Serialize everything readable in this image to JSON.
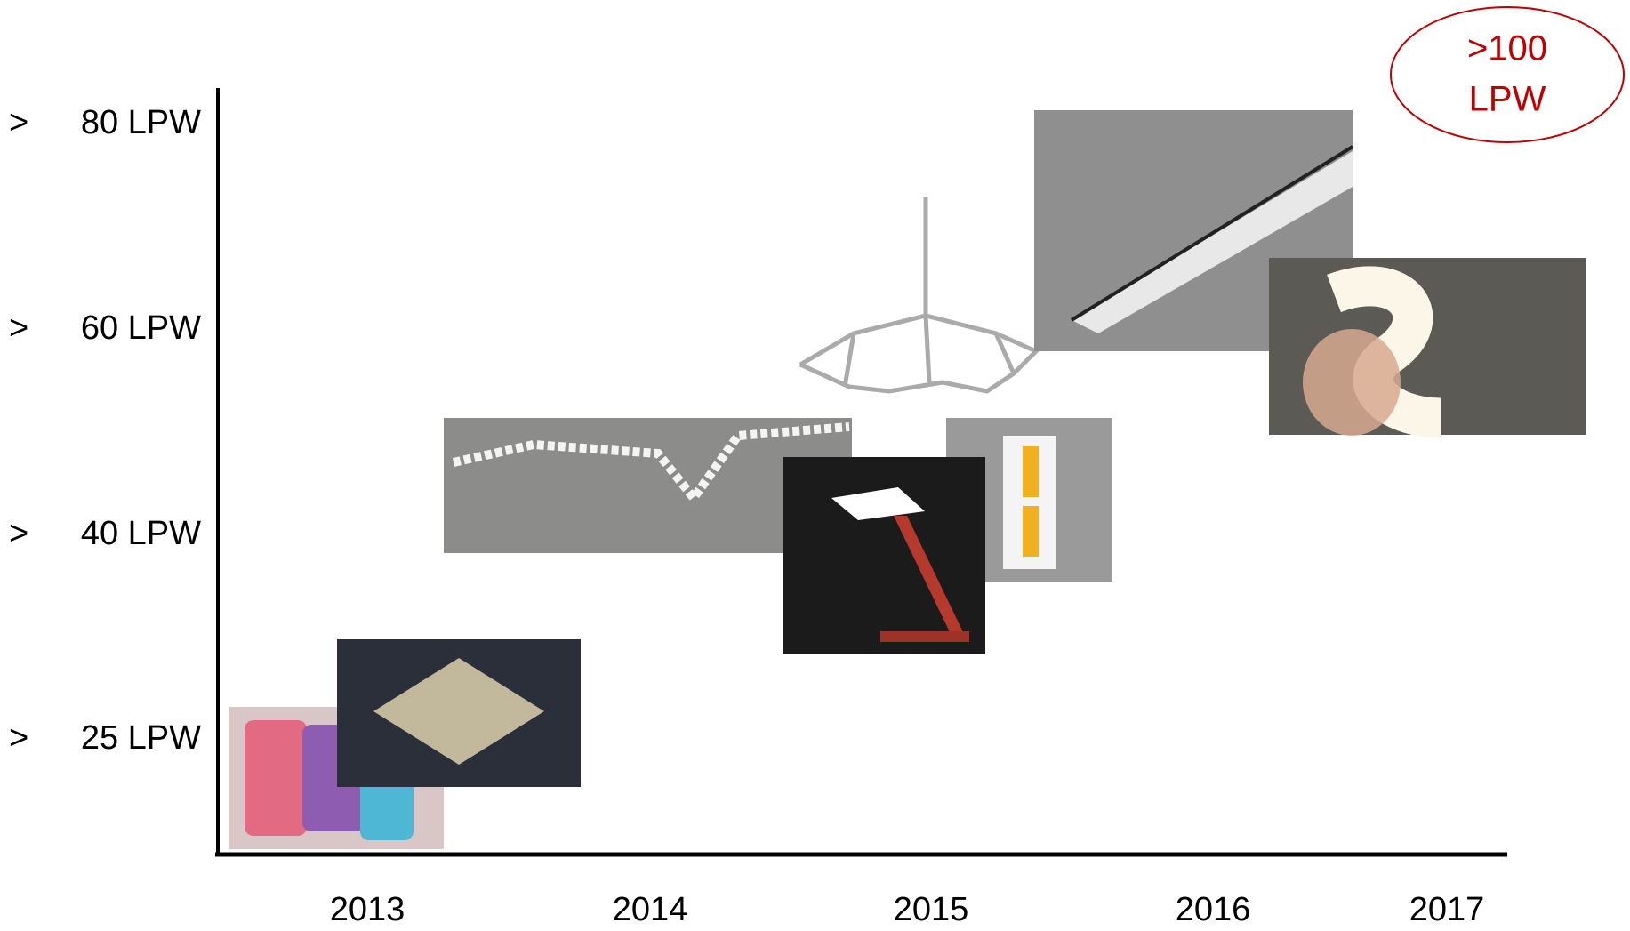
{
  "levels": [
    {
      "marker": ">",
      "label": "80 LPW"
    },
    {
      "marker": ">",
      "label": "60 LPW"
    },
    {
      "marker": ">",
      "label": "40 LPW"
    },
    {
      "marker": ">",
      "label": "25 LPW"
    }
  ],
  "years": [
    "2013",
    "2014",
    "2015",
    "2016",
    "2017"
  ],
  "callout": {
    "lines": [
      ">100",
      "LPW"
    ]
  }
}
